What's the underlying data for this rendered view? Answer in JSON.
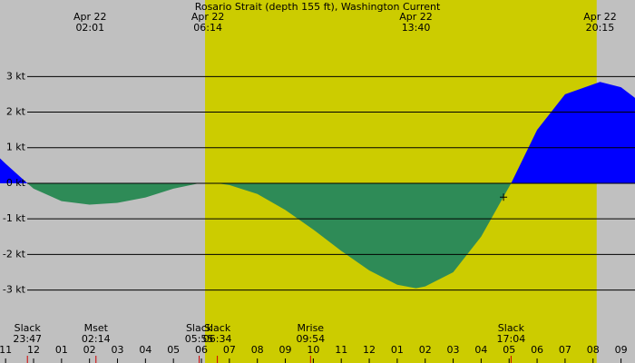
{
  "chart_data": {
    "type": "area",
    "title": "Rosario Strait (depth 155 ft), Washington Current",
    "x": [
      -1.2,
      -1,
      -0.22,
      0,
      1,
      2,
      3,
      4,
      5,
      5.92,
      6.25,
      6.57,
      7,
      8,
      9,
      10,
      11,
      12,
      13,
      13.67,
      14,
      15,
      16,
      17.07,
      18,
      19,
      20.25,
      21,
      21.5
    ],
    "values": [
      0.7,
      0.55,
      0,
      -0.15,
      -0.5,
      -0.6,
      -0.55,
      -0.4,
      -0.15,
      0,
      0.01,
      0,
      -0.05,
      -0.3,
      -0.75,
      -1.3,
      -1.9,
      -2.45,
      -2.85,
      -2.95,
      -2.9,
      -2.5,
      -1.5,
      0,
      1.5,
      2.5,
      2.85,
      2.7,
      2.4
    ],
    "xlim": [
      -1.2,
      21.5
    ],
    "ylim": [
      -5.05,
      5.15
    ],
    "yticks": [
      {
        "value": 3,
        "label": "3 kt"
      },
      {
        "value": 2,
        "label": "2 kt"
      },
      {
        "value": 1,
        "label": "1 kt"
      },
      {
        "value": 0,
        "label": "0 kt"
      },
      {
        "value": -1,
        "label": "-1 kt"
      },
      {
        "value": -2,
        "label": "-2 kt"
      },
      {
        "value": -3,
        "label": "-3 kt"
      }
    ],
    "xticks": [
      {
        "value": -1,
        "label": "11"
      },
      {
        "value": 0,
        "label": "12"
      },
      {
        "value": 1,
        "label": "01"
      },
      {
        "value": 2,
        "label": "02"
      },
      {
        "value": 3,
        "label": "03"
      },
      {
        "value": 4,
        "label": "04"
      },
      {
        "value": 5,
        "label": "05"
      },
      {
        "value": 6,
        "label": "06"
      },
      {
        "value": 7,
        "label": "07"
      },
      {
        "value": 8,
        "label": "08"
      },
      {
        "value": 9,
        "label": "09"
      },
      {
        "value": 10,
        "label": "10"
      },
      {
        "value": 11,
        "label": "11"
      },
      {
        "value": 12,
        "label": "12"
      },
      {
        "value": 13,
        "label": "01"
      },
      {
        "value": 14,
        "label": "02"
      },
      {
        "value": 15,
        "label": "03"
      },
      {
        "value": 16,
        "label": "04"
      },
      {
        "value": 17,
        "label": "05"
      },
      {
        "value": 18,
        "label": "06"
      },
      {
        "value": 19,
        "label": "07"
      },
      {
        "value": 20,
        "label": "08"
      },
      {
        "value": 21,
        "label": "09"
      }
    ],
    "colors": {
      "positive": "#0000ff",
      "negative": "#2e8b57",
      "night": "#c0c0c0",
      "day": "#cccc00"
    },
    "daylight": [
      6.13,
      20.13
    ],
    "top_labels": [
      {
        "date": "Apr 22",
        "time": "02:01",
        "x": 2.02
      },
      {
        "date": "Apr 22",
        "time": "06:14",
        "x": 6.23
      },
      {
        "date": "Apr 22",
        "time": "13:40",
        "x": 13.67
      },
      {
        "date": "Apr 22",
        "time": "20:15",
        "x": 20.25
      }
    ],
    "events": [
      {
        "name": "Slack",
        "time": "23:47",
        "x": -0.22
      },
      {
        "name": "Mset",
        "time": "02:14",
        "x": 2.23
      },
      {
        "name": "Slack",
        "time": "05:55",
        "x": 5.92
      },
      {
        "name": "Slack",
        "time": "06:34",
        "x": 6.57
      },
      {
        "name": "Mrise",
        "time": "09:54",
        "x": 9.9
      },
      {
        "name": "Slack",
        "time": "17:04",
        "x": 17.07
      }
    ],
    "marker": {
      "x": 16.8,
      "y": -0.39
    }
  }
}
